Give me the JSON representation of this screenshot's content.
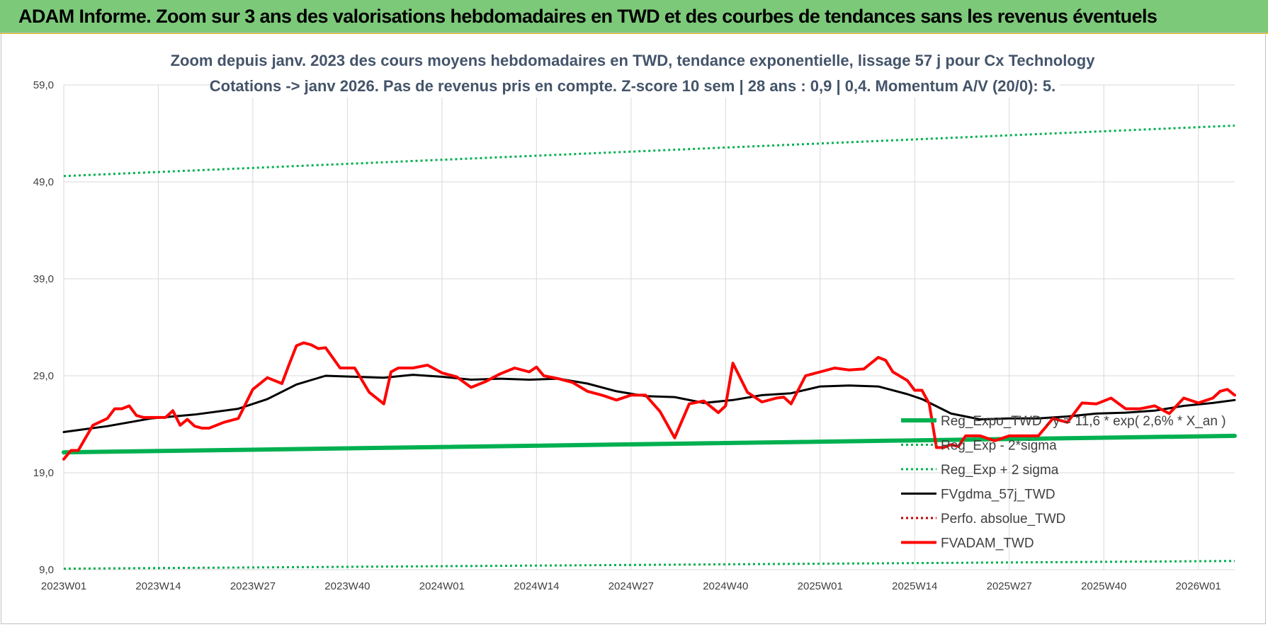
{
  "header": {
    "title": "ADAM Informe. Zoom sur 3 ans des valorisations hebdomadaires en TWD et des courbes de tendances sans les revenus éventuels"
  },
  "chart_data": {
    "type": "line",
    "title": "Zoom depuis janv. 2023 des cours moyens hebdomadaires en TWD, tendance exponentielle, lissage 57 j pour Cx Technology",
    "subtitle": "Cotations -> janv 2026. Pas de revenus pris en compte. Z-score 10 sem | 28 ans : 0,9 | 0,4. Momentum A/V (20/0): 5.",
    "xlabel": "",
    "ylabel": "",
    "ylim": [
      9,
      59
    ],
    "y_ticks": [
      "59,0",
      "49,0",
      "39,0",
      "29,0",
      "19,0",
      "9,0"
    ],
    "y_tick_values": [
      59,
      49,
      39,
      29,
      19,
      9
    ],
    "x_range": [
      0,
      161
    ],
    "x_tick_labels": [
      "2023W01",
      "2023W14",
      "2023W27",
      "2023W40",
      "2024W01",
      "2024W14",
      "2024W27",
      "2024W40",
      "2025W01",
      "2025W14",
      "2025W27",
      "2025W40",
      "2026W01"
    ],
    "x_tick_index": [
      0,
      13,
      26,
      39,
      52,
      65,
      78,
      91,
      104,
      117,
      130,
      143,
      156
    ],
    "grid": true,
    "legend_position": "right",
    "series": [
      {
        "name": "Reg_Expo_TWD : y = 11,6 * exp( 2,6% *  X_an )",
        "color": "#00b050",
        "style": "solid-thick",
        "x": [
          0,
          161
        ],
        "values": [
          21.1,
          22.8
        ]
      },
      {
        "name": "Reg_Exp - 2*sigma",
        "color": "#00b050",
        "style": "dotted",
        "x": [
          0,
          161
        ],
        "values": [
          9.1,
          9.9
        ]
      },
      {
        "name": "Reg_Exp + 2 sigma",
        "color": "#00b050",
        "style": "dotted",
        "x": [
          0,
          161
        ],
        "values": [
          49.6,
          54.8
        ]
      },
      {
        "name": "FVgdma_57j_TWD",
        "color": "#000000",
        "style": "solid",
        "x": [
          0,
          6,
          12,
          18,
          24,
          28,
          32,
          36,
          40,
          44,
          48,
          52,
          56,
          60,
          64,
          68,
          72,
          76,
          80,
          84,
          88,
          92,
          96,
          100,
          104,
          108,
          112,
          116,
          118,
          122,
          126,
          130,
          134,
          138,
          142,
          146,
          150,
          154,
          158,
          161
        ],
        "values": [
          23.2,
          23.8,
          24.6,
          25.0,
          25.6,
          26.6,
          28.1,
          29.0,
          28.9,
          28.8,
          29.1,
          28.9,
          28.6,
          28.7,
          28.6,
          28.7,
          28.2,
          27.4,
          26.9,
          26.8,
          26.2,
          26.5,
          27.0,
          27.2,
          27.9,
          28.0,
          27.9,
          27.1,
          26.6,
          25.1,
          24.5,
          24.6,
          24.6,
          24.8,
          25.1,
          25.2,
          25.4,
          25.9,
          26.2,
          26.5
        ]
      },
      {
        "name": "Perfo. absolue_TWD",
        "color": "#c00000",
        "style": "dotted",
        "x": [],
        "values": []
      },
      {
        "name": "FVADAM_TWD",
        "color": "#ff0000",
        "style": "solid-thick",
        "x": [
          0,
          1,
          2,
          4,
          6,
          7,
          8,
          9,
          10,
          11,
          12,
          13,
          14,
          15,
          16,
          17,
          18,
          19,
          20,
          22,
          24,
          26,
          28,
          30,
          31,
          32,
          33,
          34,
          35,
          36,
          38,
          40,
          42,
          44,
          45,
          46,
          48,
          50,
          52,
          54,
          56,
          58,
          60,
          62,
          64,
          65,
          66,
          68,
          70,
          72,
          74,
          76,
          78,
          80,
          82,
          84,
          86,
          88,
          90,
          91,
          92,
          94,
          96,
          98,
          99,
          100,
          102,
          104,
          106,
          108,
          110,
          111,
          112,
          113,
          114,
          116,
          117,
          118,
          119,
          120,
          121,
          122,
          123,
          124,
          126,
          128,
          130,
          132,
          134,
          135,
          136,
          138,
          140,
          142,
          144,
          146,
          148,
          150,
          152,
          154,
          156,
          158,
          159,
          160,
          161
        ],
        "values": [
          20.4,
          21.3,
          21.3,
          23.9,
          24.6,
          25.6,
          25.6,
          25.9,
          24.9,
          24.7,
          24.7,
          24.7,
          24.7,
          25.4,
          23.9,
          24.5,
          23.8,
          23.6,
          23.6,
          24.2,
          24.6,
          27.6,
          28.8,
          28.2,
          30.2,
          32.1,
          32.4,
          32.2,
          31.8,
          31.9,
          29.8,
          29.8,
          27.3,
          26.1,
          29.4,
          29.8,
          29.8,
          30.1,
          29.3,
          28.9,
          27.8,
          28.4,
          29.2,
          29.8,
          29.4,
          29.9,
          29.0,
          28.7,
          28.3,
          27.4,
          27.0,
          26.5,
          27.0,
          27.0,
          25.3,
          22.6,
          26.1,
          26.4,
          25.2,
          25.9,
          30.3,
          27.3,
          26.3,
          26.7,
          26.8,
          26.1,
          29.0,
          29.4,
          29.8,
          29.6,
          29.7,
          30.3,
          30.9,
          30.6,
          29.4,
          28.5,
          27.5,
          27.5,
          26.1,
          21.6,
          21.6,
          21.9,
          21.7,
          22.8,
          22.8,
          22.3,
          22.8,
          22.8,
          22.8,
          23.7,
          24.6,
          24.2,
          26.2,
          26.1,
          26.7,
          25.6,
          25.6,
          25.9,
          25.1,
          26.7,
          26.2,
          26.7,
          27.4,
          27.6,
          27.0
        ]
      }
    ]
  }
}
